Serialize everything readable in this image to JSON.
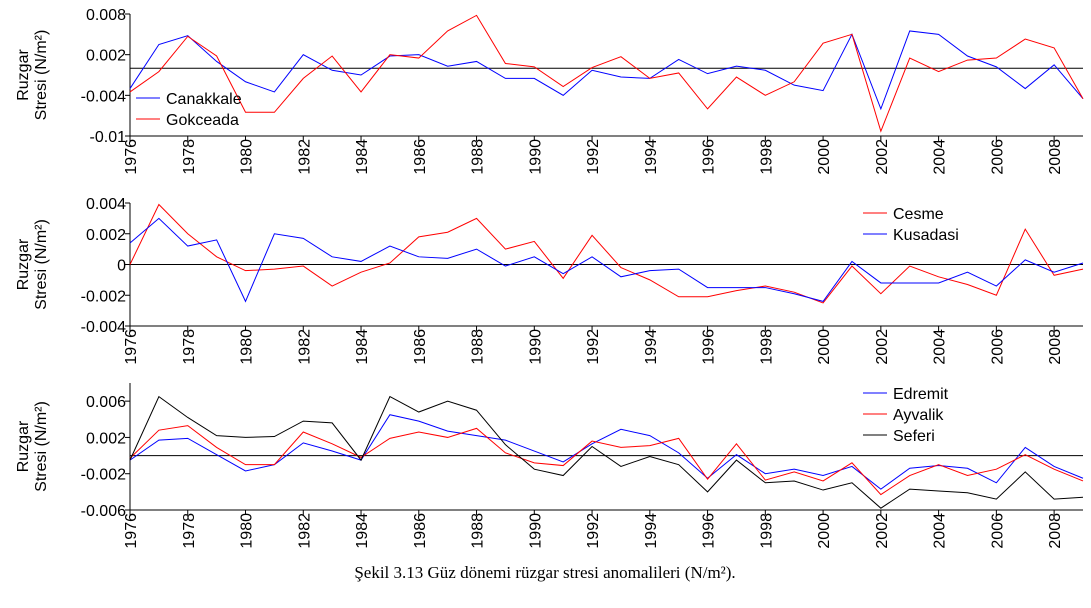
{
  "chart_data": [
    {
      "type": "line",
      "ylabel": [
        "Ruzgar",
        "Stresi (N/m²)"
      ],
      "legend": "lower left",
      "x": [
        1976,
        1977,
        1978,
        1979,
        1980,
        1981,
        1982,
        1983,
        1984,
        1985,
        1986,
        1987,
        1988,
        1989,
        1990,
        1991,
        1992,
        1993,
        1994,
        1995,
        1996,
        1997,
        1998,
        1999,
        2000,
        2001,
        2002,
        2003,
        2004,
        2005,
        2006,
        2007,
        2008,
        2009
      ],
      "xlim": [
        1976,
        2009
      ],
      "xticks": [
        1976,
        1978,
        1980,
        1982,
        1984,
        1986,
        1988,
        1990,
        1992,
        1994,
        1996,
        1998,
        2000,
        2002,
        2004,
        2006,
        2008
      ],
      "ylim": [
        -0.01,
        0.008
      ],
      "yticks": [
        0.008,
        0.002,
        -0.004,
        -0.01
      ],
      "reference_line": 0,
      "series": [
        {
          "name": "Canakkale",
          "color": "#0000ff",
          "values": [
            -0.003,
            0.0035,
            0.0048,
            0.001,
            -0.002,
            -0.0035,
            0.002,
            -0.0003,
            -0.001,
            0.0018,
            0.002,
            0.0003,
            0.001,
            -0.0015,
            -0.0015,
            -0.004,
            -0.0003,
            -0.0013,
            -0.0015,
            0.0013,
            -0.0008,
            0.0003,
            -0.0003,
            -0.0025,
            -0.0033,
            0.005,
            -0.006,
            0.0055,
            0.005,
            0.0018,
            0.0002,
            -0.003,
            0.0005,
            -0.0045
          ]
        },
        {
          "name": "Gokceada",
          "color": "#ff0000",
          "values": [
            -0.0035,
            -0.0005,
            0.0047,
            0.0018,
            -0.0065,
            -0.0065,
            -0.0015,
            0.0018,
            -0.0035,
            0.002,
            0.0015,
            0.0055,
            0.0078,
            0.0007,
            0.0002,
            -0.0027,
            0.0001,
            0.0017,
            -0.0015,
            -0.0007,
            -0.006,
            -0.0013,
            -0.004,
            -0.002,
            0.0037,
            0.005,
            -0.0093,
            0.0015,
            -0.0005,
            0.0012,
            0.0015,
            0.0043,
            0.003,
            -0.0045
          ]
        }
      ]
    },
    {
      "type": "line",
      "ylabel": [
        "Ruzgar",
        "Stresi (N/m²)"
      ],
      "legend": "upper right",
      "x": [
        1976,
        1977,
        1978,
        1979,
        1980,
        1981,
        1982,
        1983,
        1984,
        1985,
        1986,
        1987,
        1988,
        1989,
        1990,
        1991,
        1992,
        1993,
        1994,
        1995,
        1996,
        1997,
        1998,
        1999,
        2000,
        2001,
        2002,
        2003,
        2004,
        2005,
        2006,
        2007,
        2008,
        2009
      ],
      "xlim": [
        1976,
        2009
      ],
      "xticks": [
        1976,
        1978,
        1980,
        1982,
        1984,
        1986,
        1988,
        1990,
        1992,
        1994,
        1996,
        1998,
        2000,
        2002,
        2004,
        2006,
        2008
      ],
      "ylim": [
        -0.004,
        0.004
      ],
      "yticks": [
        0.004,
        0.002,
        0,
        -0.002,
        -0.004
      ],
      "reference_line": 0,
      "series": [
        {
          "name": "Cesme",
          "color": "#ff0000",
          "values": [
            0,
            0.0039,
            0.002,
            0.0005,
            -0.0004,
            -0.0003,
            -0.0001,
            -0.0014,
            -0.0005,
            0.0001,
            0.0018,
            0.0021,
            0.003,
            0.001,
            0.0015,
            -0.0009,
            0.0019,
            -0.0002,
            -0.001,
            -0.0021,
            -0.0021,
            -0.0017,
            -0.0014,
            -0.0018,
            -0.0025,
            -0.0001,
            -0.0019,
            -0.0001,
            -0.0008,
            -0.0013,
            -0.002,
            0.0023,
            -0.0007,
            -0.0003
          ]
        },
        {
          "name": "Kusadasi",
          "color": "#0000ff",
          "values": [
            0.0014,
            0.003,
            0.0012,
            0.0016,
            -0.0024,
            0.002,
            0.0017,
            0.0005,
            0.0002,
            0.0012,
            0.0005,
            0.0004,
            0.001,
            -0.0001,
            0.0005,
            -0.0006,
            0.0005,
            -0.0008,
            -0.0004,
            -0.0003,
            -0.0015,
            -0.0015,
            -0.0015,
            -0.0019,
            -0.0024,
            0.0002,
            -0.0012,
            -0.0012,
            -0.0012,
            -0.0005,
            -0.0014,
            0.0003,
            -0.0005,
            0.0001
          ]
        }
      ]
    },
    {
      "type": "line",
      "ylabel": [
        "Ruzgar",
        "Stresi (N/m²)"
      ],
      "legend": "upper right",
      "x": [
        1976,
        1977,
        1978,
        1979,
        1980,
        1981,
        1982,
        1983,
        1984,
        1985,
        1986,
        1987,
        1988,
        1989,
        1990,
        1991,
        1992,
        1993,
        1994,
        1995,
        1996,
        1997,
        1998,
        1999,
        2000,
        2001,
        2002,
        2003,
        2004,
        2005,
        2006,
        2007,
        2008,
        2009
      ],
      "xlim": [
        1976,
        2009
      ],
      "xticks": [
        1976,
        1978,
        1980,
        1982,
        1984,
        1986,
        1988,
        1990,
        1992,
        1994,
        1996,
        1998,
        2000,
        2002,
        2004,
        2006,
        2008
      ],
      "ylim": [
        -0.006,
        0.008
      ],
      "yticks": [
        0.006,
        0.002,
        -0.002,
        -0.006
      ],
      "reference_line": 0,
      "series": [
        {
          "name": "Edremit",
          "color": "#0000ff",
          "values": [
            -0.0005,
            0.0017,
            0.0019,
            0.0001,
            -0.0017,
            -0.001,
            0.0014,
            0.0005,
            -0.0005,
            0.0045,
            0.0038,
            0.0027,
            0.0022,
            0.0017,
            0.0005,
            -0.0007,
            0.0013,
            0.0029,
            0.0022,
            0.0003,
            -0.0025,
            0.0001,
            -0.002,
            -0.0015,
            -0.0022,
            -0.0012,
            -0.0037,
            -0.0014,
            -0.0011,
            -0.0014,
            -0.003,
            0.0009,
            -0.0012,
            -0.0025
          ]
        },
        {
          "name": "Ayvalik",
          "color": "#ff0000",
          "values": [
            -0.0003,
            0.0028,
            0.0033,
            0.0009,
            -0.001,
            -0.001,
            0.0026,
            0.0013,
            -0.0002,
            0.0019,
            0.0026,
            0.002,
            0.003,
            0.0003,
            -0.0008,
            -0.0011,
            0.0016,
            0.0009,
            0.0011,
            0.0019,
            -0.0026,
            0.0013,
            -0.0027,
            -0.0018,
            -0.0028,
            -0.0008,
            -0.0043,
            -0.0022,
            -0.001,
            -0.0022,
            -0.0015,
            0.0001,
            -0.0015,
            -0.0028
          ]
        },
        {
          "name": "Seferi",
          "color": "#000000",
          "values": [
            -0.0005,
            0.0065,
            0.0042,
            0.0022,
            0.002,
            0.0021,
            0.0038,
            0.0036,
            -0.0005,
            0.0065,
            0.0048,
            0.006,
            0.005,
            0.0012,
            -0.0015,
            -0.0022,
            0.001,
            -0.0012,
            -0.0001,
            -0.001,
            -0.004,
            -0.0005,
            -0.003,
            -0.0028,
            -0.0038,
            -0.003,
            -0.0058,
            -0.0037,
            -0.0039,
            -0.0041,
            -0.0048,
            -0.0018,
            -0.0048,
            -0.0046
          ]
        }
      ]
    }
  ],
  "caption": "Şekil 3.13 Güz dönemi rüzgar stresi anomalileri (N/m²)."
}
